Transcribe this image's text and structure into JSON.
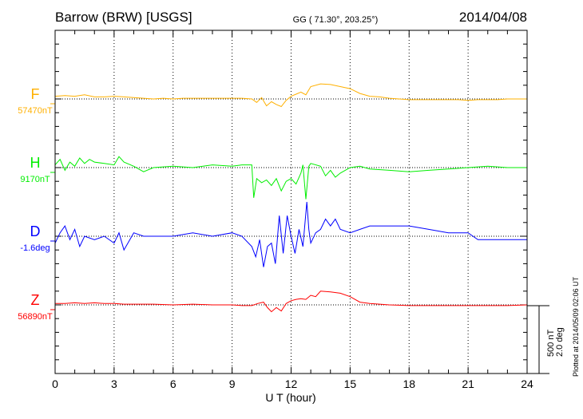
{
  "header": {
    "station": "Barrow (BRW)  [USGS]",
    "coords": "GG ( 71.30°, 203.25°)",
    "date": "2014/04/08"
  },
  "scale": {
    "nt": "500 nT",
    "deg": "2.0 deg"
  },
  "plotted": "Plotted at 2014/05/09 02:06 UT",
  "chart_data": {
    "type": "line",
    "title": "Barrow (BRW)  [USGS]",
    "xlabel": "U T (hour)",
    "xlim": [
      0,
      24
    ],
    "xticks": [
      "0",
      "3",
      "6",
      "9",
      "12",
      "15",
      "18",
      "21",
      "24"
    ],
    "panel_scale_nT": 500,
    "panel_scale_deg": 2.0,
    "grid": true,
    "series": [
      {
        "name": "F",
        "baseline_label": "57470nT",
        "color": "#ffb000",
        "unit": "nT",
        "x": [
          0,
          0.5,
          1,
          1.5,
          2,
          2.5,
          3,
          3.5,
          4,
          4.5,
          5,
          5.5,
          6,
          6.5,
          7,
          7.5,
          8,
          8.5,
          9,
          9.5,
          10,
          10.25,
          10.5,
          10.75,
          11,
          11.25,
          11.5,
          11.75,
          12,
          12.25,
          12.5,
          12.75,
          13,
          13.5,
          14,
          14.5,
          15,
          15.5,
          16,
          16.5,
          17,
          17.5,
          18,
          18.5,
          19,
          19.5,
          20,
          20.5,
          21,
          21.5,
          22,
          22.5,
          23,
          23.5,
          24
        ],
        "values": [
          20,
          25,
          20,
          30,
          15,
          15,
          20,
          15,
          10,
          5,
          0,
          5,
          0,
          5,
          5,
          5,
          5,
          5,
          5,
          5,
          0,
          -25,
          10,
          -50,
          -20,
          -40,
          -55,
          -10,
          20,
          35,
          50,
          30,
          90,
          110,
          105,
          90,
          75,
          40,
          20,
          15,
          5,
          0,
          -5,
          -5,
          -5,
          -5,
          -5,
          -5,
          -10,
          -5,
          -5,
          -5,
          0,
          0,
          0
        ]
      },
      {
        "name": "H",
        "baseline_label": "9170nT",
        "color": "#00ee00",
        "unit": "nT",
        "x": [
          0,
          0.25,
          0.5,
          0.75,
          1,
          1.25,
          1.5,
          1.75,
          2,
          2.5,
          3,
          3.25,
          3.5,
          4,
          4.5,
          5,
          6,
          7,
          8,
          9,
          9.5,
          10,
          10.1,
          10.25,
          10.5,
          10.75,
          11,
          11.25,
          11.5,
          11.75,
          12,
          12.25,
          12.5,
          12.6,
          12.75,
          12.9,
          13,
          13.5,
          13.75,
          14,
          14.25,
          14.5,
          15,
          15.5,
          16,
          17,
          18,
          19,
          20,
          21,
          22,
          23,
          24
        ],
        "values": [
          20,
          60,
          -20,
          40,
          10,
          70,
          30,
          60,
          40,
          30,
          20,
          80,
          40,
          10,
          -30,
          0,
          10,
          0,
          20,
          10,
          20,
          20,
          -220,
          -80,
          -110,
          -90,
          -130,
          -80,
          -170,
          -100,
          -80,
          -120,
          -40,
          20,
          -230,
          10,
          30,
          10,
          -60,
          -20,
          -70,
          -40,
          0,
          10,
          -10,
          -20,
          -30,
          -20,
          -10,
          0,
          10,
          0,
          0
        ]
      },
      {
        "name": "D",
        "baseline_label": "-1.6deg",
        "color": "#0000ff",
        "unit": "deg",
        "x": [
          0,
          0.25,
          0.5,
          0.75,
          1,
          1.25,
          1.5,
          2,
          2.5,
          3,
          3.25,
          3.5,
          4,
          4.5,
          5,
          6,
          7,
          8,
          9,
          9.5,
          10,
          10.2,
          10.4,
          10.6,
          10.8,
          11,
          11.2,
          11.4,
          11.6,
          11.8,
          12,
          12.2,
          12.4,
          12.6,
          12.8,
          12.9,
          13,
          13.25,
          13.5,
          13.75,
          14,
          14.25,
          14.5,
          15,
          15.5,
          16,
          17,
          18,
          19,
          20,
          21,
          21.5,
          22,
          23,
          24
        ],
        "values": [
          -0.2,
          0.1,
          0.3,
          -0.1,
          0.2,
          -0.3,
          0,
          -0.1,
          0,
          -0.2,
          0.1,
          -0.4,
          0.1,
          0,
          0,
          0,
          0.1,
          0,
          0.1,
          0,
          -0.3,
          -0.6,
          -0.1,
          -0.9,
          -0.3,
          -0.2,
          -0.8,
          0.6,
          -0.5,
          0.6,
          0,
          -0.5,
          0.2,
          -0.3,
          1.0,
          0.2,
          -0.2,
          0.1,
          0.2,
          0.5,
          0.3,
          0.5,
          0.2,
          0.1,
          0.2,
          0.3,
          0.3,
          0.3,
          0.2,
          0.1,
          0.1,
          -0.1,
          -0.1,
          -0.1,
          -0.1
        ]
      },
      {
        "name": "Z",
        "baseline_label": "56890nT",
        "color": "#ff0000",
        "unit": "nT",
        "x": [
          0,
          0.5,
          1,
          1.5,
          2,
          2.5,
          3,
          3.5,
          4,
          5,
          6,
          7,
          8,
          9,
          9.5,
          10,
          10.3,
          10.6,
          10.8,
          11,
          11.25,
          11.5,
          11.75,
          12,
          12.25,
          12.5,
          12.75,
          13,
          13.25,
          13.5,
          14,
          14.5,
          15,
          15.5,
          16,
          17,
          18,
          19,
          20,
          21,
          22,
          23,
          24
        ],
        "values": [
          10,
          10,
          15,
          10,
          15,
          10,
          10,
          5,
          5,
          5,
          0,
          5,
          0,
          0,
          -5,
          -5,
          10,
          20,
          -20,
          -50,
          -20,
          -45,
          10,
          30,
          40,
          45,
          40,
          70,
          60,
          100,
          95,
          85,
          60,
          20,
          10,
          0,
          -5,
          -5,
          -5,
          -5,
          -5,
          -5,
          0
        ]
      }
    ]
  }
}
